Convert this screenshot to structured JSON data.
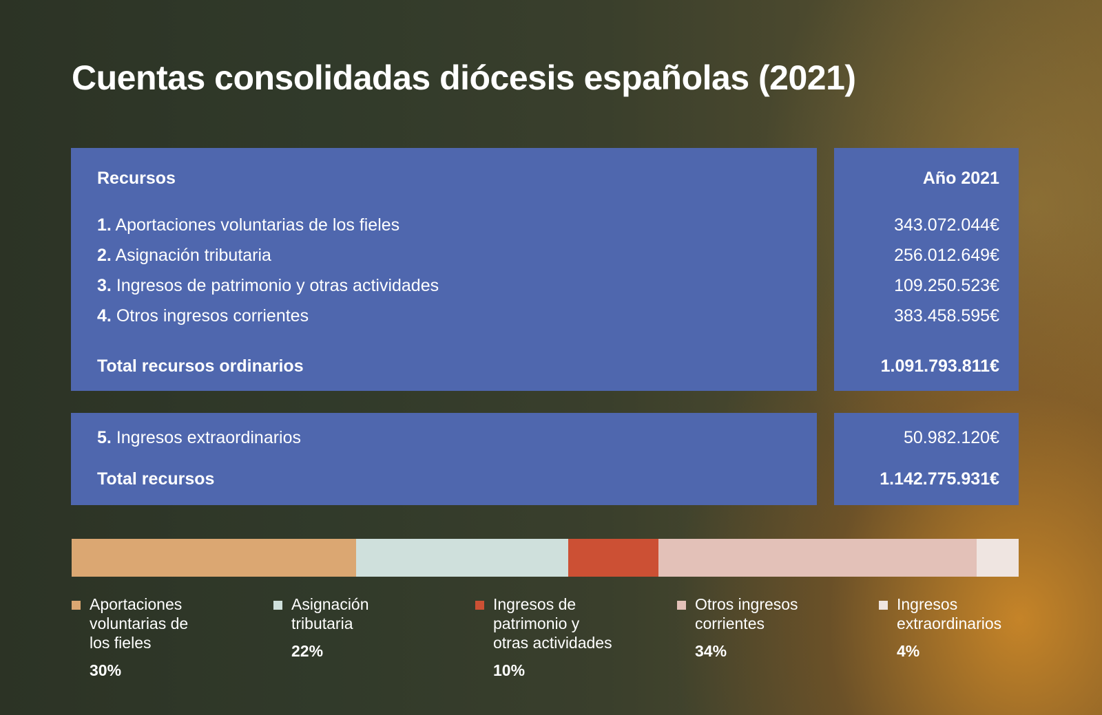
{
  "title": "Cuentas consolidadas diócesis españolas (2021)",
  "table": {
    "header_left": "Recursos",
    "header_right": "Año 2021",
    "rows": [
      {
        "num": "1.",
        "label": "Aportaciones voluntarias de los fieles",
        "value": "343.072.044€"
      },
      {
        "num": "2.",
        "label": "Asignación tributaria",
        "value": "256.012.649€"
      },
      {
        "num": "3.",
        "label": "Ingresos de patrimonio y otras actividades",
        "value": "109.250.523€"
      },
      {
        "num": "4.",
        "label": "Otros ingresos corrientes",
        "value": "383.458.595€"
      }
    ],
    "subtotal_label": "Total recursos ordinarios",
    "subtotal_value": "1.091.793.811€",
    "extra": {
      "num": "5.",
      "label": "Ingresos extraordinarios",
      "value": "50.982.120€"
    },
    "total_label": "Total recursos",
    "total_value": "1.142.775.931€"
  },
  "chart_data": {
    "type": "bar",
    "stacked": true,
    "orientation": "horizontal",
    "categories": [
      "Aportaciones voluntarias de los fieles",
      "Asignación tributaria",
      "Ingresos de patrimonio y otras actividades",
      "Otros ingresos corrientes",
      "Ingresos extraordinarios"
    ],
    "values": [
      343072044,
      256012649,
      109250523,
      383458595,
      50982120
    ],
    "legend": [
      {
        "label": "Aportaciones voluntarias de los fieles",
        "pct": "30%",
        "color": "#dba772"
      },
      {
        "label": "Asignación tributaria",
        "pct": "22%",
        "color": "#cfe0dc"
      },
      {
        "label": "Ingresos de patrimonio y otras actividades",
        "pct": "10%",
        "color": "#cc5034"
      },
      {
        "label": "Otros ingresos corrientes",
        "pct": "34%",
        "color": "#e3c1b8"
      },
      {
        "label": "Ingresos extraordinarios",
        "pct": "4%",
        "color": "#efe5e1"
      }
    ],
    "legend_placement": "bottom"
  },
  "colors": {
    "panel": "#4f67ae"
  }
}
